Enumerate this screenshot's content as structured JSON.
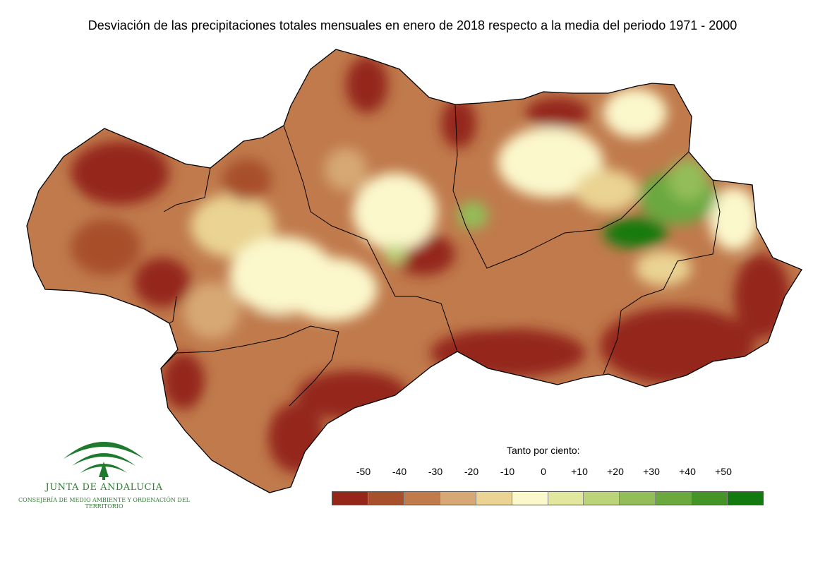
{
  "title": "Desviación de las precipitaciones totales mensuales en enero de 2018 respecto a la media del periodo 1971 - 2000",
  "legend": {
    "title": "Tanto por ciento:",
    "ticks": [
      "-50",
      "-40",
      "-30",
      "-20",
      "-10",
      "0",
      "+10",
      "+20",
      "+30",
      "+40",
      "+50"
    ],
    "colors": [
      "#94271a",
      "#a8502b",
      "#c07a4c",
      "#d7a873",
      "#ead393",
      "#fbf8cc",
      "#e1e79c",
      "#bbd47a",
      "#93bd58",
      "#6ba93f",
      "#459427",
      "#137a10"
    ]
  },
  "logo": {
    "name": "JUNTA DE ANDALUCIA",
    "subtitle": "CONSEJERÍA DE MEDIO AMBIENTE Y ORDENACIÓN DEL TERRITORIO",
    "color": "#2e7d32"
  },
  "map": {
    "region": "Andalucía",
    "base_color": "#c07a4c",
    "border_color": "#000000"
  }
}
